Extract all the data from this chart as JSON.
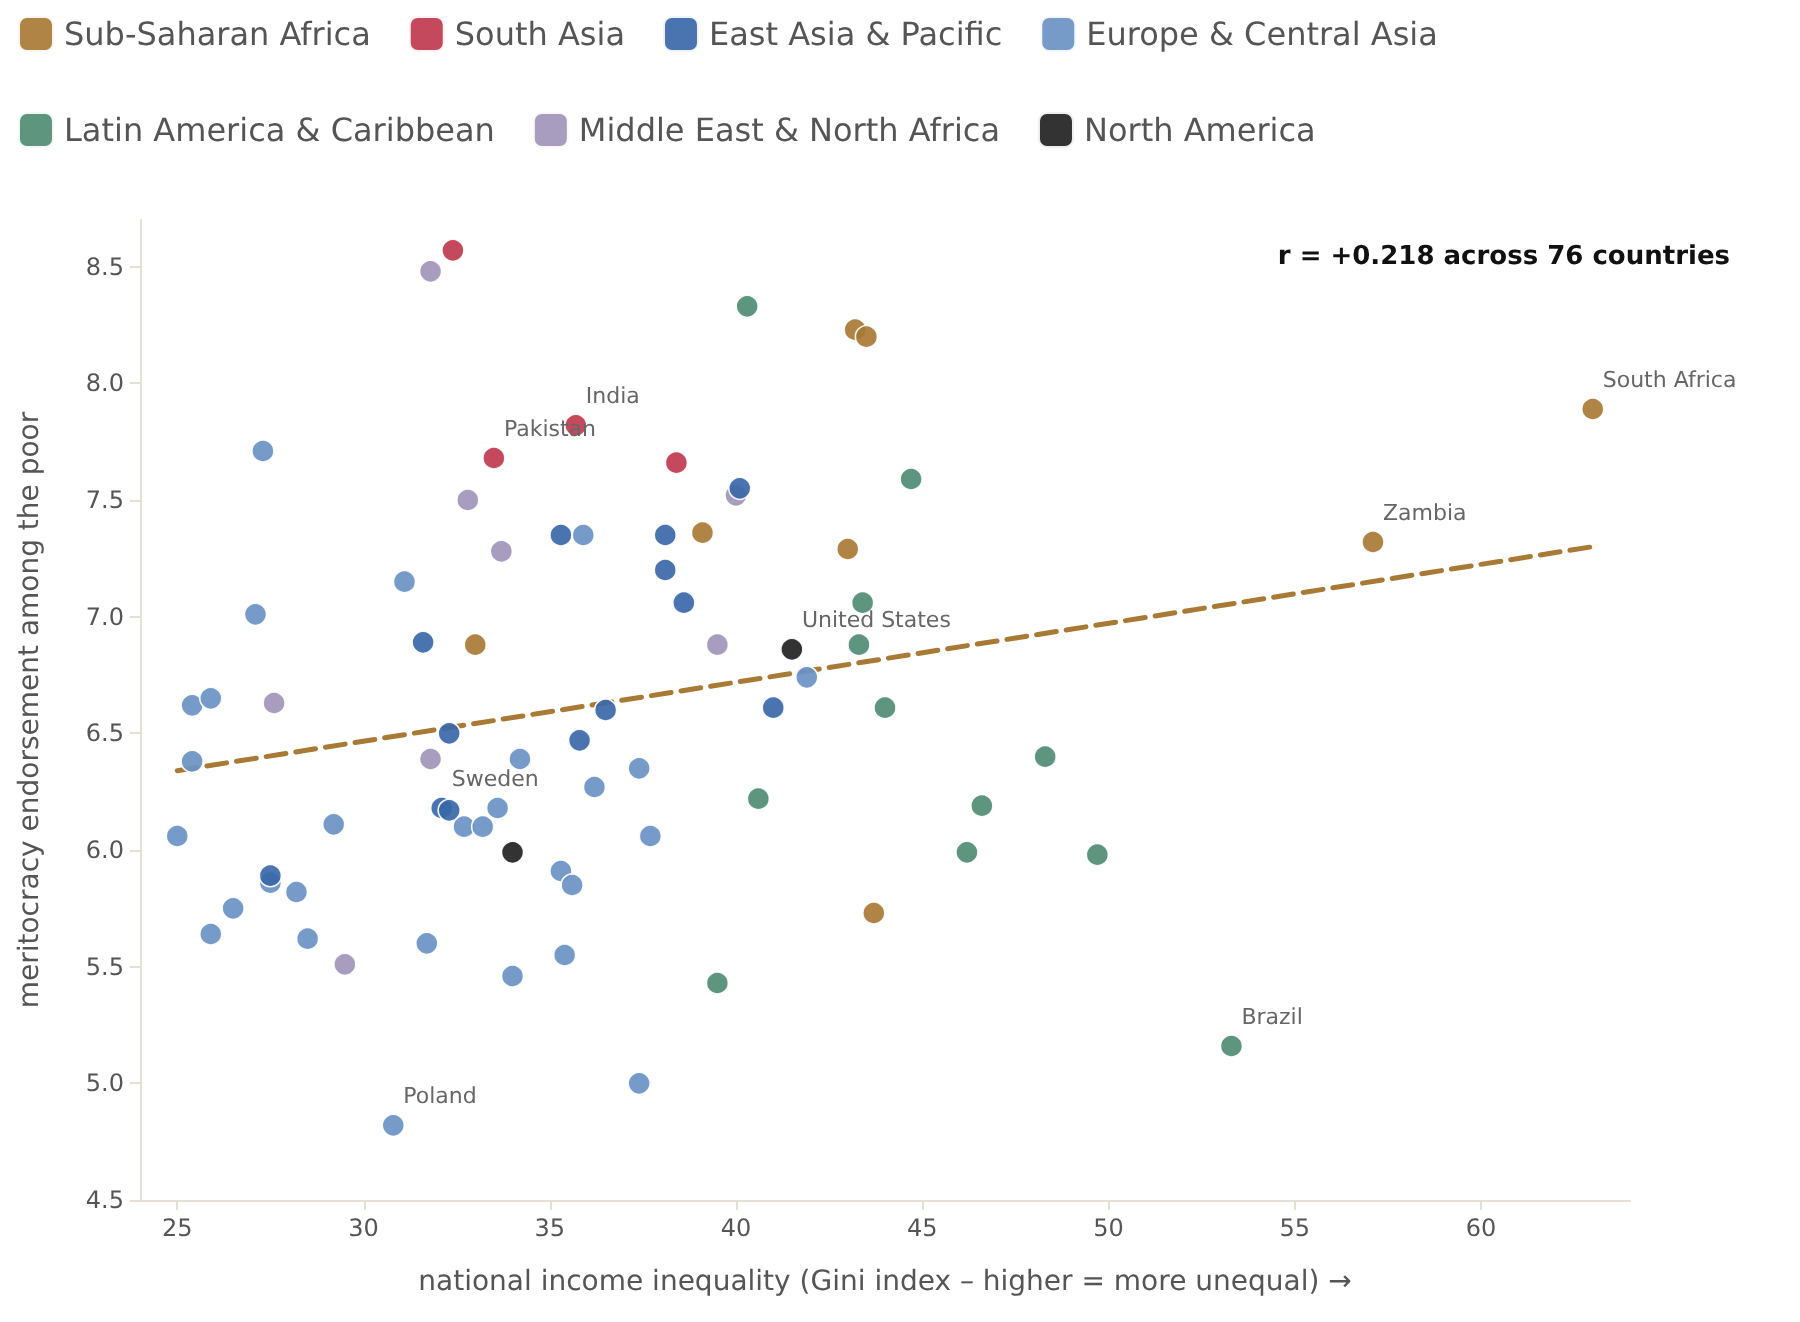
{
  "chart_data": {
    "type": "scatter",
    "xlabel": "national income inequality (Gini index – higher = more unequal) →",
    "ylabel": "meritocracy endorsement among the poor",
    "xlim": [
      24,
      64
    ],
    "ylim": [
      4.5,
      8.7
    ],
    "xticks": [
      25,
      30,
      35,
      40,
      45,
      50,
      55,
      60
    ],
    "yticks": [
      4.5,
      {
        "value": 5,
        "label": "5.0"
      },
      5.5,
      {
        "value": 6,
        "label": "6.0"
      },
      6.5,
      {
        "value": 7,
        "label": "7.0"
      },
      7.5,
      {
        "value": 8,
        "label": "8.0"
      },
      8.5
    ],
    "grid": false,
    "legend": "top",
    "marker": "circle",
    "series": [
      {
        "name": "Sub-Saharan Africa",
        "color": "#a87a35",
        "x": [
          33.0,
          39.1,
          43.0,
          43.2,
          43.5,
          43.7,
          57.1,
          63.0
        ],
        "values": [
          6.88,
          7.36,
          7.29,
          8.23,
          8.2,
          5.73,
          7.32,
          7.89
        ]
      },
      {
        "name": "South Asia",
        "color": "#c0394f",
        "x": [
          32.4,
          33.5,
          35.7,
          38.4
        ],
        "values": [
          8.57,
          7.68,
          7.82,
          7.66
        ]
      },
      {
        "name": "East Asia & Pacific",
        "color": "#3a68a8",
        "x": [
          31.6,
          32.1,
          32.3,
          32.3,
          35.3,
          35.8,
          36.5,
          38.1,
          38.1,
          38.6,
          40.1,
          41.0,
          27.5
        ],
        "values": [
          6.89,
          6.18,
          6.5,
          6.17,
          7.35,
          6.47,
          6.6,
          7.35,
          7.2,
          7.06,
          7.55,
          6.61,
          5.89
        ]
      },
      {
        "name": "Europe & Central Asia",
        "color": "#6b93c4",
        "x": [
          27.3,
          35.9,
          31.1,
          27.1,
          25.4,
          25.9,
          41.9,
          25.4,
          34.2,
          37.4,
          36.2,
          29.2,
          25.0,
          32.7,
          33.2,
          33.6,
          37.7,
          27.5,
          35.3,
          35.6,
          28.2,
          26.5,
          25.9,
          28.5,
          31.7,
          34.0,
          35.4,
          37.4,
          30.8
        ],
        "values": [
          7.71,
          7.35,
          7.15,
          7.01,
          6.62,
          6.65,
          6.74,
          6.38,
          6.39,
          6.35,
          6.27,
          6.11,
          6.06,
          6.1,
          6.1,
          6.18,
          6.06,
          5.86,
          5.91,
          5.85,
          5.82,
          5.75,
          5.64,
          5.62,
          5.6,
          5.46,
          5.55,
          5.0,
          4.82
        ]
      },
      {
        "name": "Latin America & Caribbean",
        "color": "#4f8c74",
        "x": [
          40.3,
          44.7,
          43.4,
          43.3,
          44.0,
          48.3,
          40.6,
          46.6,
          46.2,
          49.7,
          39.5,
          53.3
        ],
        "values": [
          8.33,
          7.59,
          7.06,
          6.88,
          6.61,
          6.4,
          6.22,
          6.19,
          5.99,
          5.98,
          5.43,
          5.16
        ]
      },
      {
        "name": "Middle East & North Africa",
        "color": "#a195b8",
        "x": [
          31.8,
          32.8,
          33.7,
          40.0,
          39.5,
          27.6,
          31.8,
          29.5
        ],
        "values": [
          8.48,
          7.5,
          7.28,
          7.52,
          6.88,
          6.63,
          6.39,
          5.51
        ]
      },
      {
        "name": "North America",
        "color": "#222222",
        "x": [
          41.5,
          34.0
        ],
        "values": [
          6.86,
          5.99
        ]
      },
      {
        "type": "line",
        "color": "#a87a35",
        "line_style": "dashed",
        "marker": "none",
        "x": [
          25,
          63
        ],
        "values": [
          6.34,
          7.3
        ]
      }
    ],
    "annotations": [
      "r = +0.218 across 76 countries",
      {
        "text": "India",
        "x": 35.7,
        "y": 7.82
      },
      {
        "text": "Pakistan",
        "x": 33.5,
        "y": 7.68
      },
      {
        "text": "United States",
        "x": 41.5,
        "y": 6.86
      },
      {
        "text": "Zambia",
        "x": 57.1,
        "y": 7.32
      },
      {
        "text": "South Africa",
        "x": 63.0,
        "y": 7.89
      },
      {
        "text": "Brazil",
        "x": 53.3,
        "y": 5.16
      },
      {
        "text": "Sweden",
        "x": 32.1,
        "y": 6.18
      },
      {
        "text": "Poland",
        "x": 30.8,
        "y": 4.82
      }
    ]
  }
}
